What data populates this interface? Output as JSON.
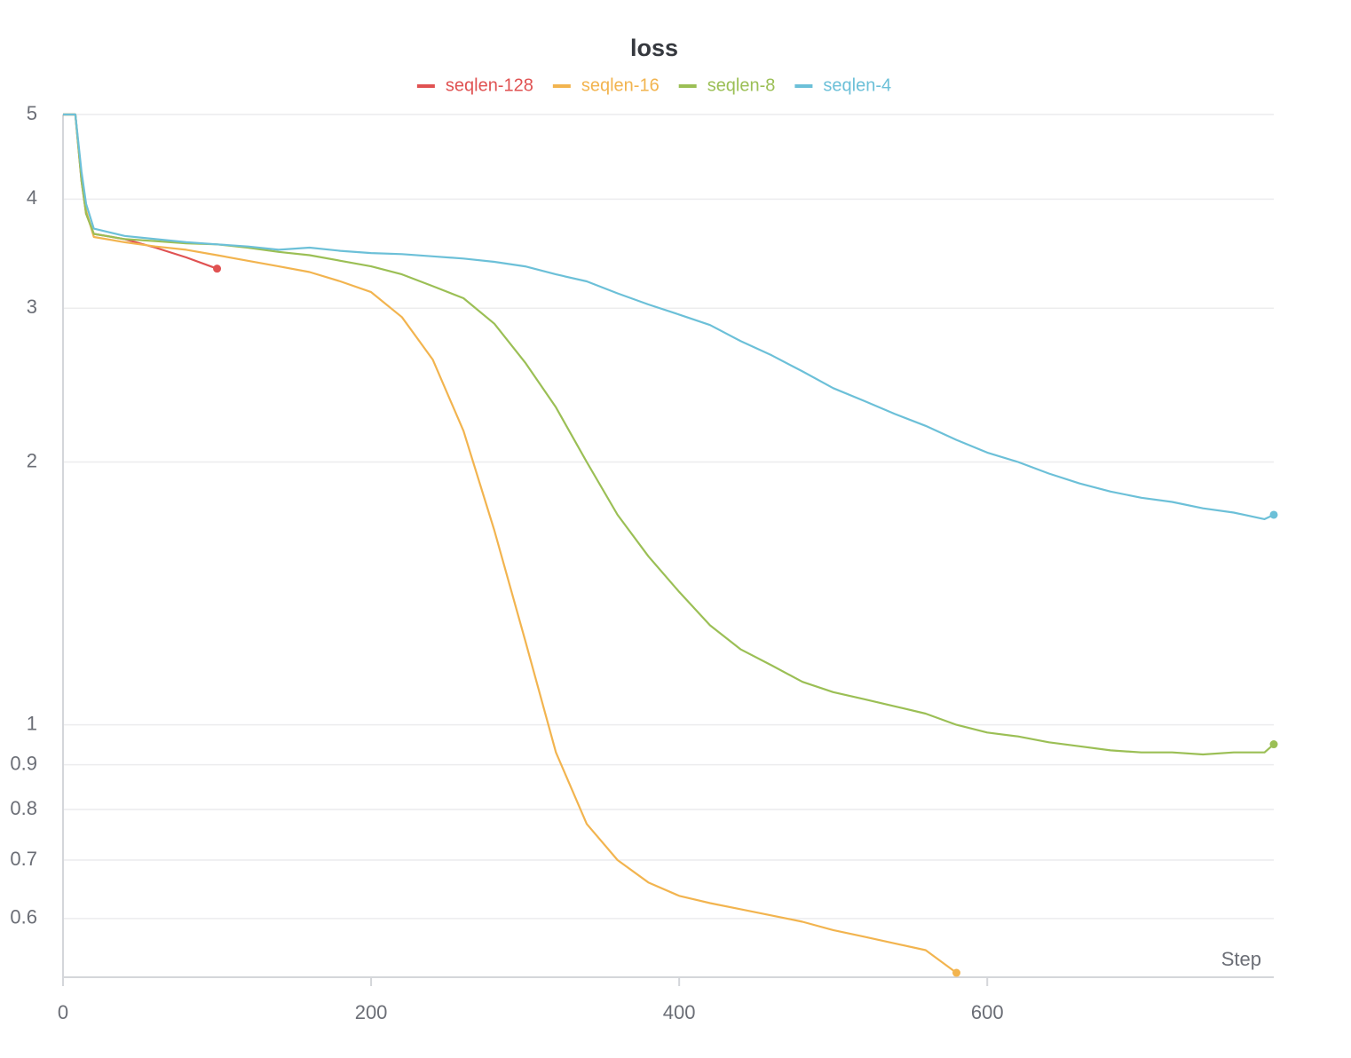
{
  "chart_data": {
    "type": "line",
    "title": "loss",
    "x_label": "Step",
    "x": [
      0,
      5,
      8,
      12,
      15,
      20,
      40,
      60,
      80,
      100,
      120,
      140,
      160,
      180,
      200,
      220,
      240,
      260,
      280,
      300,
      320,
      340,
      360,
      380,
      400,
      420,
      440,
      460,
      480,
      500,
      520,
      540,
      560,
      580,
      600,
      620,
      640,
      660,
      680,
      700,
      720,
      740,
      760,
      780,
      786
    ],
    "series": [
      {
        "name": "seqlen-128",
        "color": "#e05252",
        "values": [
          5,
          5,
          5,
          4.2,
          3.85,
          3.65,
          3.6,
          3.52,
          3.43,
          3.33,
          null,
          null,
          null,
          null,
          null,
          null,
          null,
          null,
          null,
          null,
          null,
          null,
          null,
          null,
          null,
          null,
          null,
          null,
          null,
          null,
          null,
          null,
          null,
          null,
          null,
          null,
          null,
          null,
          null,
          null,
          null,
          null,
          null,
          null,
          null
        ]
      },
      {
        "name": "seqlen-16",
        "color": "#f2b44f",
        "values": [
          5,
          5,
          5,
          4.25,
          3.88,
          3.62,
          3.57,
          3.53,
          3.5,
          3.45,
          3.4,
          3.35,
          3.3,
          3.22,
          3.13,
          2.93,
          2.62,
          2.17,
          1.67,
          1.25,
          0.93,
          0.77,
          0.7,
          0.66,
          0.637,
          0.625,
          0.615,
          0.605,
          0.595,
          0.582,
          0.572,
          0.562,
          0.552,
          0.52,
          null,
          null,
          null,
          null,
          null,
          null,
          null,
          null,
          null,
          null,
          null
        ]
      },
      {
        "name": "seqlen-8",
        "color": "#9bbf55",
        "values": [
          5,
          5,
          5,
          4.2,
          3.85,
          3.65,
          3.6,
          3.58,
          3.56,
          3.55,
          3.52,
          3.48,
          3.45,
          3.4,
          3.35,
          3.28,
          3.18,
          3.08,
          2.88,
          2.6,
          2.31,
          2.0,
          1.74,
          1.56,
          1.42,
          1.3,
          1.22,
          1.17,
          1.12,
          1.09,
          1.07,
          1.05,
          1.03,
          1.0,
          0.98,
          0.97,
          0.955,
          0.945,
          0.935,
          0.93,
          0.93,
          0.925,
          0.93,
          0.93,
          0.95
        ]
      },
      {
        "name": "seqlen-4",
        "color": "#6cc0d8",
        "values": [
          5,
          5,
          5,
          4.3,
          3.95,
          3.7,
          3.63,
          3.6,
          3.57,
          3.55,
          3.53,
          3.5,
          3.52,
          3.49,
          3.47,
          3.46,
          3.44,
          3.42,
          3.39,
          3.35,
          3.28,
          3.22,
          3.12,
          3.03,
          2.95,
          2.87,
          2.75,
          2.65,
          2.54,
          2.43,
          2.35,
          2.27,
          2.2,
          2.12,
          2.05,
          2.0,
          1.94,
          1.89,
          1.85,
          1.82,
          1.8,
          1.77,
          1.75,
          1.72,
          1.74
        ]
      }
    ],
    "xlim": [
      0,
      786
    ],
    "xticks": [
      0,
      200,
      400,
      600
    ],
    "ylim": [
      0.514,
      5
    ],
    "yticks": [
      0.6,
      0.7,
      0.8,
      0.9,
      1,
      2,
      3,
      4,
      5
    ],
    "yscale": "log",
    "grid": true,
    "legend": "top"
  }
}
